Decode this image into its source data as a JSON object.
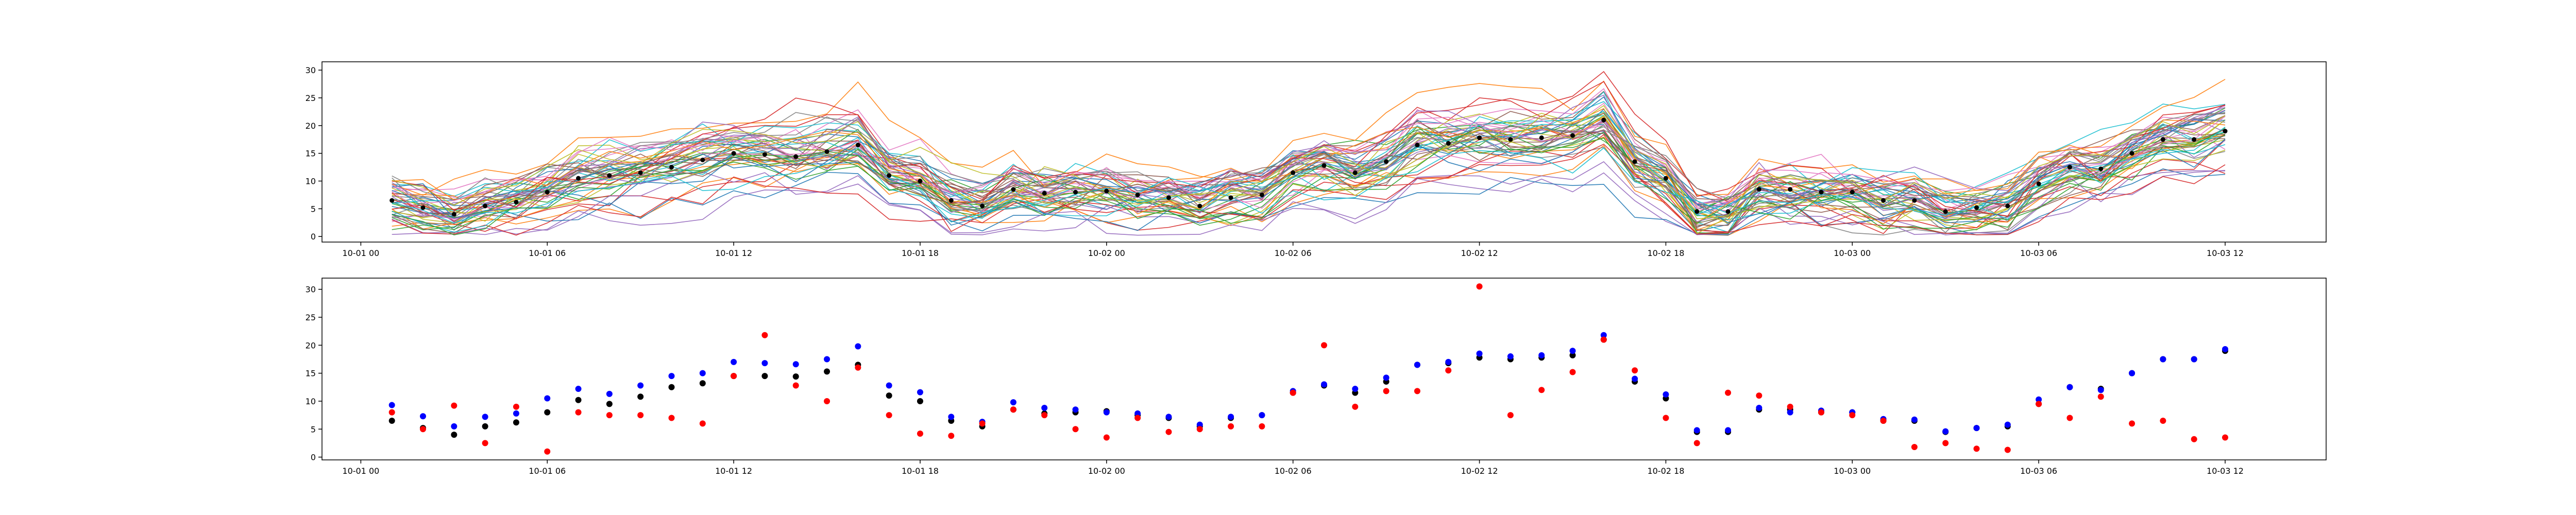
{
  "chart_data": [
    {
      "type": "line",
      "title": "",
      "xlabel": "",
      "ylabel": "",
      "grid": false,
      "x_ticks": [
        "10-01 00",
        "10-01 06",
        "10-01 12",
        "10-01 18",
        "10-02 00",
        "10-02 06",
        "10-02 12",
        "10-02 18",
        "10-03 00",
        "10-03 06",
        "10-03 12"
      ],
      "y_ticks": [
        "0",
        "5",
        "10",
        "15",
        "20",
        "25",
        "30"
      ],
      "xlim": [
        "09-30 22:45",
        "10-03 15:15"
      ],
      "ylim": [
        -1,
        31.5
      ],
      "ensemble": {
        "member_count": 50,
        "style": "thin colored lines, default color cycle",
        "colors": [
          "#1f77b4",
          "#ff7f0e",
          "#2ca02c",
          "#d62728",
          "#9467bd",
          "#8c564b",
          "#e377c2",
          "#7f7f7f",
          "#bcbd22",
          "#17becf"
        ]
      },
      "series": [
        {
          "marker": "black dots",
          "color": "#000000",
          "x": [
            "10-01 01",
            "10-01 02",
            "10-01 03",
            "10-01 04",
            "10-01 05",
            "10-01 06",
            "10-01 07",
            "10-01 08",
            "10-01 09",
            "10-01 10",
            "10-01 11",
            "10-01 12",
            "10-01 13",
            "10-01 14",
            "10-01 15",
            "10-01 16",
            "10-01 17",
            "10-01 18",
            "10-01 19",
            "10-01 20",
            "10-01 21",
            "10-01 22",
            "10-01 23",
            "10-02 00",
            "10-02 01",
            "10-02 02",
            "10-02 03",
            "10-02 04",
            "10-02 05",
            "10-02 06",
            "10-02 07",
            "10-02 08",
            "10-02 09",
            "10-02 10",
            "10-02 11",
            "10-02 12",
            "10-02 13",
            "10-02 14",
            "10-02 15",
            "10-02 16",
            "10-02 17",
            "10-02 18",
            "10-02 19",
            "10-02 20",
            "10-02 21",
            "10-02 22",
            "10-02 23",
            "10-03 00",
            "10-03 01",
            "10-03 02",
            "10-03 03",
            "10-03 04",
            "10-03 05",
            "10-03 06",
            "10-03 07",
            "10-03 08",
            "10-03 09",
            "10-03 10",
            "10-03 11",
            "10-03 12"
          ],
          "values": [
            6.5,
            5.2,
            4.0,
            5.5,
            6.2,
            8.0,
            10.5,
            11.0,
            11.5,
            12.5,
            13.8,
            15.0,
            14.8,
            14.4,
            15.3,
            16.5,
            11.0,
            10.0,
            6.5,
            5.5,
            8.5,
            7.8,
            8.0,
            8.2,
            7.5,
            7.0,
            5.5,
            7.0,
            7.5,
            11.5,
            12.8,
            11.5,
            13.5,
            16.5,
            16.8,
            17.8,
            17.5,
            17.8,
            18.2,
            21.0,
            13.5,
            10.5,
            4.5,
            4.5,
            8.5,
            8.5,
            8.0,
            8.0,
            6.5,
            6.5,
            4.5,
            5.2,
            5.5,
            9.5,
            12.5,
            12.2,
            15.0,
            17.5,
            17.5,
            19.0
          ]
        }
      ]
    },
    {
      "type": "scatter",
      "title": "",
      "xlabel": "",
      "ylabel": "",
      "grid": false,
      "x_ticks": [
        "10-01 00",
        "10-01 06",
        "10-01 12",
        "10-01 18",
        "10-02 00",
        "10-02 06",
        "10-02 12",
        "10-02 18",
        "10-03 00",
        "10-03 06",
        "10-03 12"
      ],
      "y_ticks": [
        "0",
        "5",
        "10",
        "15",
        "20",
        "25",
        "30"
      ],
      "xlim": [
        "09-30 22:45",
        "10-03 15:15"
      ],
      "ylim": [
        -0.5,
        32
      ],
      "x": [
        "10-01 01",
        "10-01 02",
        "10-01 03",
        "10-01 04",
        "10-01 05",
        "10-01 06",
        "10-01 07",
        "10-01 08",
        "10-01 09",
        "10-01 10",
        "10-01 11",
        "10-01 12",
        "10-01 13",
        "10-01 14",
        "10-01 15",
        "10-01 16",
        "10-01 17",
        "10-01 18",
        "10-01 19",
        "10-01 20",
        "10-01 21",
        "10-01 22",
        "10-01 23",
        "10-02 00",
        "10-02 01",
        "10-02 02",
        "10-02 03",
        "10-02 04",
        "10-02 05",
        "10-02 06",
        "10-02 07",
        "10-02 08",
        "10-02 09",
        "10-02 10",
        "10-02 11",
        "10-02 12",
        "10-02 13",
        "10-02 14",
        "10-02 15",
        "10-02 16",
        "10-02 17",
        "10-02 18",
        "10-02 19",
        "10-02 20",
        "10-02 21",
        "10-02 22",
        "10-02 23",
        "10-03 00",
        "10-03 01",
        "10-03 02",
        "10-03 03",
        "10-03 04",
        "10-03 05",
        "10-03 06",
        "10-03 07",
        "10-03 08",
        "10-03 09",
        "10-03 10",
        "10-03 11",
        "10-03 12"
      ],
      "series": [
        {
          "color": "#000000",
          "values": [
            6.5,
            5.2,
            4.0,
            5.5,
            6.2,
            8.0,
            10.2,
            9.5,
            10.8,
            12.5,
            13.2,
            14.5,
            14.5,
            14.4,
            15.3,
            16.5,
            11.0,
            10.0,
            6.5,
            5.5,
            8.5,
            7.8,
            8.0,
            8.2,
            7.5,
            7.0,
            5.5,
            7.0,
            7.5,
            11.5,
            12.8,
            11.5,
            13.5,
            16.5,
            16.8,
            17.8,
            17.5,
            17.8,
            18.2,
            21.0,
            13.5,
            10.5,
            4.5,
            4.5,
            8.5,
            8.5,
            8.0,
            8.0,
            6.5,
            6.5,
            4.5,
            5.2,
            5.5,
            9.5,
            12.5,
            12.2,
            15.0,
            17.5,
            17.5,
            19.0
          ]
        },
        {
          "color": "#0000ff",
          "values": [
            9.3,
            7.3,
            5.5,
            7.2,
            7.8,
            10.5,
            12.2,
            11.3,
            12.8,
            14.5,
            15.0,
            17.0,
            16.8,
            16.6,
            17.5,
            19.8,
            12.8,
            11.6,
            7.2,
            6.3,
            9.8,
            8.8,
            8.5,
            8.0,
            7.8,
            7.2,
            5.8,
            7.2,
            7.5,
            11.8,
            13.0,
            12.2,
            14.2,
            16.5,
            17.0,
            18.5,
            18.0,
            18.2,
            19.0,
            21.8,
            14.0,
            11.2,
            4.8,
            4.8,
            8.8,
            8.0,
            8.3,
            8.0,
            6.8,
            6.7,
            4.6,
            5.2,
            5.8,
            10.3,
            12.5,
            12.0,
            15.0,
            17.5,
            17.5,
            19.3
          ]
        },
        {
          "color": "#ff0000",
          "values": [
            8.0,
            5.0,
            9.2,
            2.5,
            9.0,
            1.0,
            8.0,
            7.5,
            7.5,
            7.0,
            6.0,
            14.5,
            21.8,
            12.8,
            10.0,
            16.0,
            7.5,
            4.2,
            3.8,
            6.0,
            8.5,
            7.5,
            5.0,
            3.5,
            7.0,
            4.5,
            5.0,
            5.5,
            5.5,
            11.5,
            20.0,
            9.0,
            11.8,
            11.8,
            15.5,
            30.5,
            7.5,
            12.0,
            15.2,
            21.0,
            15.5,
            7.0,
            2.5,
            11.5,
            11.0,
            9.0,
            8.0,
            7.5,
            6.5,
            1.8,
            2.5,
            1.5,
            1.3,
            9.5,
            7.0,
            10.8,
            6.0,
            6.5,
            3.2,
            3.5
          ]
        }
      ]
    }
  ]
}
